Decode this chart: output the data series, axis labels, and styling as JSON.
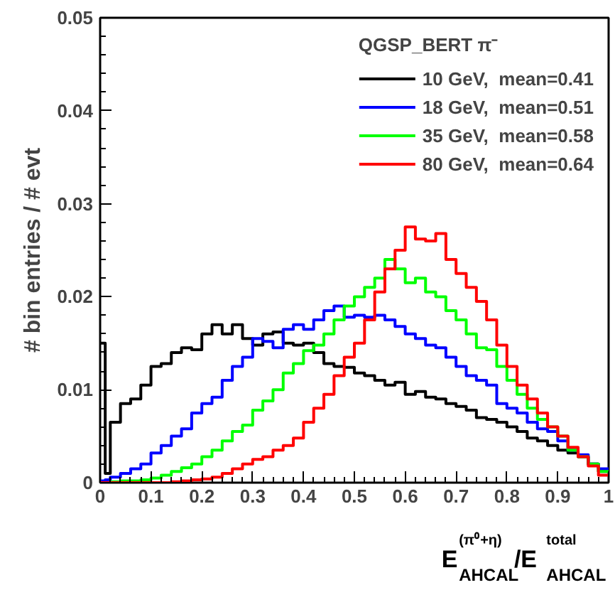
{
  "chart_data": {
    "type": "histogram",
    "ylabel": "# bin entries / # evt",
    "xlabel": "E$^{(π⁰+η)}$$_{AHCAL}$/E$^{total}$$_{AHCAL}$",
    "legend_title": "QGSP_BERT π⁻",
    "legend": "top right",
    "grid": false,
    "xlim": [
      0,
      1
    ],
    "ylim": [
      0,
      0.05
    ],
    "xticks": [
      0,
      0.1,
      0.2,
      0.3,
      0.4,
      0.5,
      0.6,
      0.7,
      0.8,
      0.9,
      1
    ],
    "yticks": [
      0,
      0.01,
      0.02,
      0.03,
      0.04,
      0.05
    ],
    "bins": [
      0,
      0.01,
      0.02,
      0.04,
      0.06,
      0.08,
      0.1,
      0.12,
      0.14,
      0.16,
      0.18,
      0.2,
      0.22,
      0.24,
      0.26,
      0.28,
      0.3,
      0.32,
      0.34,
      0.36,
      0.38,
      0.4,
      0.42,
      0.44,
      0.46,
      0.48,
      0.5,
      0.52,
      0.54,
      0.56,
      0.58,
      0.6,
      0.62,
      0.64,
      0.66,
      0.68,
      0.7,
      0.72,
      0.74,
      0.76,
      0.78,
      0.8,
      0.82,
      0.84,
      0.86,
      0.88,
      0.9,
      0.92,
      0.94,
      0.96,
      0.98,
      1.0
    ],
    "series": [
      {
        "name": "10 GeV,  mean=0.41",
        "color": "#000000",
        "values": [
          0.015,
          0.001,
          0.0065,
          0.0085,
          0.009,
          0.0105,
          0.0125,
          0.0128,
          0.014,
          0.0145,
          0.0143,
          0.016,
          0.017,
          0.016,
          0.017,
          0.0155,
          0.0148,
          0.016,
          0.0162,
          0.015,
          0.0148,
          0.015,
          0.014,
          0.0128,
          0.0125,
          0.0124,
          0.0118,
          0.0115,
          0.011,
          0.0105,
          0.0108,
          0.0095,
          0.0098,
          0.0092,
          0.009,
          0.0085,
          0.0082,
          0.0078,
          0.007,
          0.0068,
          0.0065,
          0.006,
          0.0055,
          0.0048,
          0.0045,
          0.004,
          0.0035,
          0.0032,
          0.0028,
          0.002,
          0.0012
        ]
      },
      {
        "name": "18 GeV,  mean=0.51",
        "color": "#0000ff",
        "values": [
          0.0002,
          0.0003,
          0.0006,
          0.001,
          0.0015,
          0.002,
          0.0032,
          0.004,
          0.005,
          0.0058,
          0.0075,
          0.0085,
          0.0092,
          0.011,
          0.0125,
          0.0135,
          0.0155,
          0.0152,
          0.0145,
          0.0165,
          0.017,
          0.0165,
          0.0175,
          0.0185,
          0.019,
          0.0178,
          0.018,
          0.0178,
          0.018,
          0.0175,
          0.0168,
          0.016,
          0.0155,
          0.0148,
          0.0145,
          0.0135,
          0.0125,
          0.0115,
          0.011,
          0.0105,
          0.0085,
          0.008,
          0.0075,
          0.0065,
          0.0058,
          0.0055,
          0.0045,
          0.0035,
          0.003,
          0.002,
          0.0015
        ]
      },
      {
        "name": "35 GeV,  mean=0.58",
        "color": "#00ff00",
        "values": [
          0,
          0,
          0.0001,
          0.0002,
          0.0002,
          0.0003,
          0.0005,
          0.0008,
          0.0012,
          0.0016,
          0.002,
          0.0028,
          0.0035,
          0.0045,
          0.0055,
          0.0062,
          0.0078,
          0.0088,
          0.01,
          0.0118,
          0.0128,
          0.0142,
          0.0148,
          0.016,
          0.0175,
          0.019,
          0.02,
          0.021,
          0.022,
          0.024,
          0.023,
          0.0215,
          0.022,
          0.0205,
          0.02,
          0.0185,
          0.0175,
          0.016,
          0.0145,
          0.0143,
          0.0125,
          0.011,
          0.0095,
          0.008,
          0.0068,
          0.006,
          0.005,
          0.0035,
          0.0028,
          0.002,
          0.0012
        ]
      },
      {
        "name": "80 GeV,  mean=0.64",
        "color": "#ff0000",
        "values": [
          0,
          0,
          0,
          0,
          0,
          0,
          0,
          0,
          0.0001,
          0.0002,
          0.0003,
          0.0004,
          0.0006,
          0.001,
          0.0015,
          0.002,
          0.0025,
          0.0028,
          0.0035,
          0.004,
          0.0048,
          0.0065,
          0.008,
          0.0095,
          0.0115,
          0.0135,
          0.015,
          0.0175,
          0.0205,
          0.023,
          0.025,
          0.0275,
          0.0262,
          0.026,
          0.0268,
          0.024,
          0.0225,
          0.021,
          0.0195,
          0.0175,
          0.0148,
          0.0125,
          0.0105,
          0.009,
          0.0075,
          0.006,
          0.005,
          0.0038,
          0.0028,
          0.0018,
          0.0008
        ]
      }
    ]
  }
}
